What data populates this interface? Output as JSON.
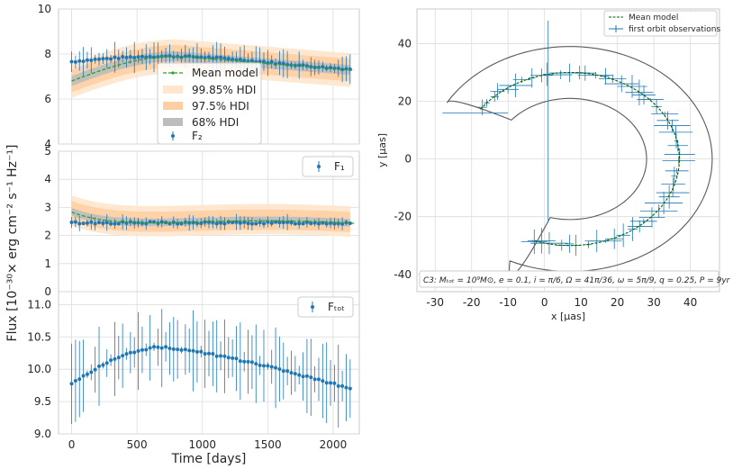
{
  "figure": {
    "ylabel": "Flux [10⁻³⁰× erg cm⁻² s⁻¹ Hz⁻¹]",
    "xlabel": "Time [days]"
  },
  "colors": {
    "obs": "#1f77b4",
    "model": "#2ca02c",
    "hdi9985": "#ffe6cc",
    "hdi975": "#ffcfa3",
    "hdi68": "#bdbdbd",
    "contour": "#595959",
    "grid": "#dcdcdc",
    "spine": "#c8c8c8"
  },
  "chart_data": [
    {
      "id": "F2",
      "type": "line",
      "ylim": [
        4,
        10
      ],
      "yticks": [
        4,
        6,
        8,
        10
      ],
      "xlim": [
        -100,
        2200
      ],
      "xticks": [
        0,
        500,
        1000,
        1500,
        2000
      ],
      "legend": {
        "position": "center-left",
        "entries": [
          "Mean model",
          "99.85% HDI",
          "97.5% HDI",
          "68% HDI",
          "F₂"
        ]
      },
      "series": [
        {
          "name": "observations",
          "t_start": 0,
          "t_step": 30,
          "n": 72,
          "mean": 7.6,
          "amp": 0.3,
          "phase_period": 2000
        },
        {
          "name": "Mean model",
          "start": 6.8,
          "peak": 7.9
        }
      ]
    },
    {
      "id": "F1",
      "type": "line",
      "ylim": [
        0,
        5
      ],
      "yticks": [
        0,
        1,
        2,
        3,
        4,
        5
      ],
      "xlim": [
        -100,
        2200
      ],
      "legend": {
        "position": "top-right",
        "entries": [
          "F₁"
        ]
      },
      "series": [
        {
          "name": "observations",
          "mean": 2.45
        },
        {
          "name": "Mean model",
          "start": 2.95,
          "end": 2.4
        }
      ]
    },
    {
      "id": "Ftot",
      "type": "scatter",
      "ylim": [
        9.0,
        11.2
      ],
      "yticks": [
        9.0,
        9.5,
        10.0,
        10.5,
        11.0
      ],
      "ytick_labels": [
        "9.0",
        "9.5",
        "10.0",
        "10.5",
        "11.0"
      ],
      "xlim": [
        -100,
        2200
      ],
      "xticks": [
        0,
        500,
        1000,
        1500,
        2000
      ],
      "legend": {
        "position": "top-right",
        "entries": [
          "Fₜₒₜ"
        ]
      },
      "series": [
        {
          "name": "observations",
          "start": 9.78,
          "peak": 10.34,
          "end": 9.7
        }
      ]
    },
    {
      "id": "orbit",
      "type": "scatter",
      "xlabel": "x [μas]",
      "ylabel": "y [μas]",
      "xlim": [
        -35,
        48
      ],
      "ylim": [
        -46,
        52
      ],
      "xticks": [
        -30,
        -20,
        -10,
        0,
        10,
        20,
        30,
        40
      ],
      "yticks": [
        -40,
        -20,
        0,
        20,
        40
      ],
      "legend": {
        "position": "top-right",
        "entries": [
          "Mean model",
          "first orbit observations"
        ]
      },
      "orbit": {
        "cx": 7,
        "cy": 0,
        "radius": 30,
        "start_deg": 140,
        "end_deg": 250,
        "n": 52
      },
      "annotation": "C3: Mₜₒₜ = 10⁹M⊙, e = 0.1, i = π/6, Ω = 41π/36, ω = 5π/9, q = 0.25, P = 9yr"
    }
  ]
}
